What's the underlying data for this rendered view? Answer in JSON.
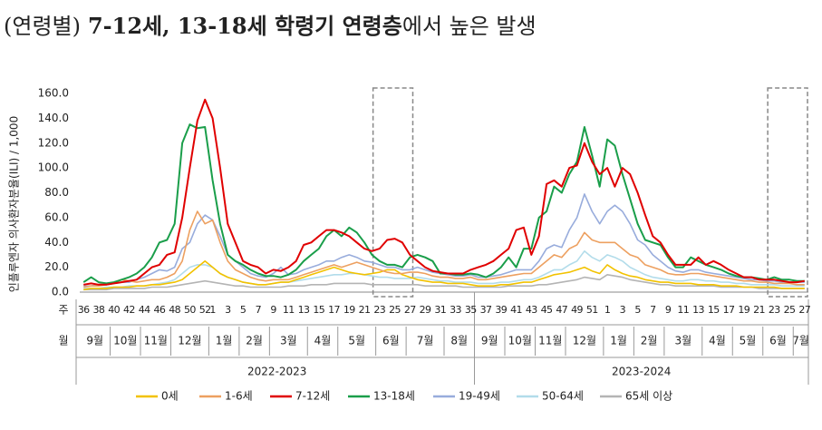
{
  "chart_data": {
    "type": "line",
    "title_parts": [
      "(연령별)",
      "7-12세, 13-18세 학령기 연령층",
      "에서 높은 발생"
    ],
    "ylabel": "인플루엔자 의사환자분율(ILI) / 1,000",
    "week_row_label": "주",
    "month_row_label": "월",
    "ylim": [
      0,
      160
    ],
    "yticks": [
      {
        "value": 0,
        "label": "0.0"
      },
      {
        "value": 20,
        "label": "20.0"
      },
      {
        "value": 40,
        "label": "40.0"
      },
      {
        "value": 60,
        "label": "60.0"
      },
      {
        "value": 80,
        "label": "80.0"
      },
      {
        "value": 100,
        "label": "100.0"
      },
      {
        "value": 120,
        "label": "120.0"
      },
      {
        "value": 140,
        "label": "140.0"
      },
      {
        "value": 160,
        "label": "160.0"
      }
    ],
    "grid": false,
    "categories": [
      "36",
      null,
      "38",
      null,
      "40",
      null,
      "42",
      null,
      "44",
      null,
      "46",
      null,
      "48",
      null,
      "50",
      null,
      "52",
      "1",
      null,
      "3",
      null,
      "5",
      null,
      "7",
      null,
      "9",
      null,
      "11",
      null,
      "13",
      null,
      "15",
      null,
      "17",
      null,
      "19",
      null,
      "21",
      null,
      "23",
      null,
      "25",
      null,
      "27",
      null,
      "29",
      null,
      "31",
      null,
      "33",
      null,
      "35",
      null,
      "37",
      null,
      "39",
      null,
      "41",
      null,
      "43",
      null,
      "45",
      null,
      "47",
      null,
      "49",
      null,
      "51",
      null,
      "1",
      null,
      "3",
      null,
      "5",
      null,
      "7",
      null,
      "9",
      null,
      "11",
      null,
      "13",
      null,
      "15",
      null,
      "17",
      null,
      "19",
      null,
      "21",
      null,
      "23",
      null,
      "25",
      null,
      "27"
    ],
    "months": [
      "9월",
      "10월",
      "11월",
      "12월",
      "1월",
      "2월",
      "3월",
      "4월",
      "5월",
      "6월",
      "7월",
      "8월",
      "9월",
      "10월",
      "11월",
      "12월",
      "1월",
      "2월",
      "3월",
      "4월",
      "5월",
      "6월",
      "7월"
    ],
    "seasons": [
      "2022-2023",
      "2023-2024"
    ],
    "series": [
      {
        "name": "0세",
        "color": "#f2c200",
        "values": [
          2,
          3,
          3,
          3,
          4,
          4,
          4,
          5,
          5,
          6,
          6,
          7,
          8,
          10,
          15,
          20,
          25,
          20,
          15,
          12,
          10,
          8,
          7,
          6,
          6,
          7,
          8,
          8,
          10,
          12,
          14,
          16,
          18,
          20,
          18,
          16,
          15,
          14,
          15,
          16,
          18,
          18,
          14,
          12,
          10,
          9,
          8,
          8,
          7,
          7,
          7,
          6,
          5,
          5,
          5,
          6,
          6,
          7,
          8,
          8,
          10,
          12,
          14,
          15,
          16,
          18,
          20,
          17,
          15,
          22,
          18,
          15,
          13,
          12,
          10,
          9,
          8,
          8,
          7,
          7,
          7,
          6,
          6,
          6,
          5,
          5,
          5,
          4,
          4,
          4,
          4,
          4,
          3,
          3,
          3,
          3
        ]
      },
      {
        "name": "1-6세",
        "color": "#eda060",
        "values": [
          4,
          5,
          5,
          6,
          8,
          10,
          9,
          8,
          9,
          10,
          10,
          12,
          15,
          25,
          50,
          65,
          55,
          58,
          40,
          25,
          18,
          15,
          12,
          10,
          9,
          10,
          10,
          10,
          12,
          14,
          16,
          18,
          20,
          22,
          20,
          22,
          24,
          22,
          20,
          18,
          16,
          15,
          15,
          16,
          16,
          15,
          13,
          12,
          12,
          11,
          11,
          12,
          10,
          10,
          11,
          12,
          13,
          14,
          15,
          15,
          20,
          25,
          30,
          28,
          35,
          38,
          48,
          42,
          40,
          40,
          40,
          35,
          30,
          28,
          22,
          20,
          18,
          15,
          14,
          14,
          15,
          15,
          14,
          13,
          12,
          11,
          10,
          9,
          9,
          8,
          8,
          7,
          7,
          7,
          6,
          6
        ]
      },
      {
        "name": "7-12세",
        "color": "#e00000",
        "values": [
          6,
          7,
          6,
          6,
          7,
          8,
          9,
          10,
          15,
          20,
          22,
          30,
          32,
          60,
          100,
          138,
          155,
          140,
          100,
          55,
          40,
          25,
          22,
          20,
          15,
          18,
          17,
          20,
          25,
          38,
          40,
          45,
          50,
          50,
          48,
          45,
          40,
          35,
          33,
          35,
          42,
          43,
          40,
          30,
          25,
          20,
          17,
          16,
          15,
          15,
          15,
          18,
          20,
          22,
          25,
          30,
          35,
          50,
          52,
          30,
          45,
          87,
          90,
          85,
          100,
          102,
          120,
          105,
          95,
          100,
          85,
          100,
          95,
          80,
          62,
          45,
          40,
          30,
          22,
          22,
          22,
          28,
          22,
          25,
          22,
          18,
          15,
          12,
          12,
          10,
          10,
          10,
          9,
          8,
          8,
          9
        ]
      },
      {
        "name": "13-18세",
        "color": "#1a9e4a",
        "values": [
          8,
          12,
          8,
          7,
          8,
          10,
          12,
          15,
          20,
          28,
          40,
          42,
          55,
          120,
          135,
          132,
          133,
          90,
          55,
          30,
          25,
          22,
          18,
          15,
          13,
          13,
          12,
          14,
          18,
          25,
          30,
          35,
          45,
          50,
          45,
          52,
          48,
          40,
          30,
          25,
          22,
          22,
          20,
          28,
          30,
          28,
          25,
          15,
          15,
          14,
          14,
          15,
          14,
          12,
          15,
          20,
          28,
          20,
          35,
          35,
          60,
          65,
          85,
          80,
          95,
          105,
          133,
          110,
          85,
          123,
          118,
          95,
          75,
          55,
          42,
          40,
          38,
          28,
          20,
          20,
          28,
          25,
          22,
          20,
          18,
          15,
          13,
          12,
          12,
          11,
          10,
          12,
          10,
          10,
          9,
          9
        ]
      },
      {
        "name": "19-49세",
        "color": "#98acdc",
        "values": [
          5,
          5,
          6,
          6,
          7,
          8,
          8,
          10,
          12,
          15,
          18,
          17,
          20,
          35,
          40,
          55,
          62,
          58,
          45,
          30,
          25,
          20,
          15,
          13,
          12,
          15,
          20,
          14,
          15,
          18,
          20,
          22,
          25,
          25,
          28,
          30,
          28,
          25,
          24,
          22,
          20,
          20,
          18,
          18,
          20,
          18,
          16,
          15,
          14,
          13,
          13,
          14,
          12,
          12,
          13,
          14,
          16,
          18,
          18,
          18,
          25,
          35,
          38,
          36,
          50,
          60,
          79,
          65,
          55,
          65,
          70,
          65,
          55,
          42,
          38,
          30,
          25,
          20,
          17,
          16,
          18,
          18,
          16,
          15,
          14,
          13,
          12,
          11,
          10,
          10,
          9,
          9,
          8,
          8,
          8,
          8
        ]
      },
      {
        "name": "50-64세",
        "color": "#b2dcea",
        "values": [
          3,
          3,
          3,
          4,
          4,
          4,
          5,
          5,
          5,
          6,
          7,
          8,
          10,
          15,
          20,
          22,
          22,
          20,
          15,
          12,
          10,
          8,
          7,
          6,
          6,
          7,
          8,
          8,
          9,
          10,
          11,
          12,
          13,
          14,
          14,
          15,
          15,
          14,
          13,
          12,
          12,
          11,
          11,
          11,
          12,
          11,
          10,
          9,
          9,
          8,
          8,
          8,
          7,
          7,
          7,
          8,
          8,
          9,
          10,
          10,
          12,
          15,
          18,
          18,
          22,
          25,
          33,
          28,
          25,
          30,
          28,
          25,
          20,
          17,
          14,
          12,
          11,
          10,
          9,
          9,
          10,
          10,
          9,
          9,
          8,
          8,
          7,
          7,
          6,
          6,
          6,
          6,
          5,
          5,
          5,
          5
        ]
      },
      {
        "name": "65세 이상",
        "color": "#b4b4b4",
        "values": [
          2,
          2,
          2,
          2,
          3,
          3,
          3,
          3,
          3,
          4,
          4,
          4,
          5,
          6,
          7,
          8,
          9,
          8,
          7,
          6,
          5,
          5,
          4,
          4,
          4,
          4,
          4,
          5,
          5,
          5,
          6,
          6,
          6,
          7,
          7,
          7,
          7,
          7,
          6,
          6,
          6,
          6,
          6,
          6,
          6,
          5,
          5,
          5,
          5,
          5,
          4,
          4,
          4,
          4,
          4,
          4,
          5,
          5,
          5,
          5,
          6,
          6,
          7,
          8,
          9,
          10,
          12,
          11,
          10,
          14,
          13,
          12,
          10,
          9,
          8,
          7,
          6,
          6,
          5,
          5,
          5,
          5,
          5,
          5,
          4,
          4,
          4,
          4,
          4,
          3,
          3,
          3,
          3,
          3,
          3,
          3
        ]
      }
    ]
  }
}
